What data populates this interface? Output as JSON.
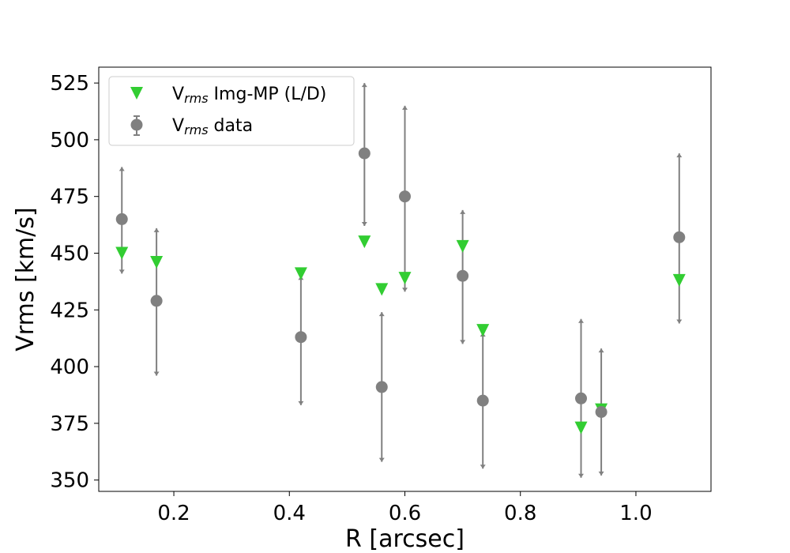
{
  "chart_data": {
    "type": "scatter",
    "title": "",
    "xlabel": "R [arcsec]",
    "ylabel": "Vrms [km/s]",
    "xlim": [
      0.07,
      1.13
    ],
    "ylim": [
      345,
      532
    ],
    "xticks": [
      0.2,
      0.4,
      0.6,
      0.8,
      1.0
    ],
    "xtick_labels": [
      "0.2",
      "0.4",
      "0.6",
      "0.8",
      "1.0"
    ],
    "yticks": [
      350,
      375,
      400,
      425,
      450,
      475,
      500,
      525
    ],
    "ytick_labels": [
      "350",
      "375",
      "400",
      "425",
      "450",
      "475",
      "500",
      "525"
    ],
    "grid": false,
    "legend_position": "upper-left",
    "legend": [
      {
        "label_main": "V",
        "label_sub": "rms",
        "label_rest": " Img-MP (L/D)",
        "marker": "triangle-down",
        "color": "#32cd32"
      },
      {
        "label_main": "V",
        "label_sub": "rms",
        "label_rest": " data",
        "marker": "circle-errorbar",
        "color": "#808080"
      }
    ],
    "series": [
      {
        "name": "Vrms data",
        "color": "#808080",
        "x": [
          0.11,
          0.17,
          0.42,
          0.53,
          0.56,
          0.6,
          0.7,
          0.735,
          0.905,
          0.94,
          1.075
        ],
        "y": [
          465,
          429,
          413,
          494,
          391,
          475,
          440,
          385,
          386,
          380,
          457
        ],
        "y_low": [
          441,
          396,
          383,
          462,
          358,
          433,
          410,
          355,
          351,
          352,
          419
        ],
        "y_high": [
          488,
          461,
          440,
          525,
          424,
          515,
          469,
          415,
          421,
          408,
          494
        ]
      },
      {
        "name": "Vrms Img-MP (L/D)",
        "color": "#32cd32",
        "x": [
          0.11,
          0.17,
          0.42,
          0.53,
          0.56,
          0.6,
          0.7,
          0.735,
          0.905,
          0.94,
          1.075
        ],
        "y": [
          450,
          446,
          441,
          455,
          434,
          439,
          453,
          416,
          373,
          381,
          438
        ]
      }
    ]
  }
}
